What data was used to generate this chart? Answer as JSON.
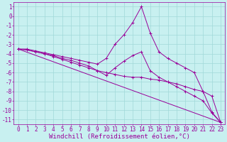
{
  "xlabel": "Windchill (Refroidissement éolien,°C)",
  "background_color": "#c8f0f0",
  "grid_color": "#a0d8d8",
  "line_color": "#990099",
  "xlim": [
    -0.5,
    23.5
  ],
  "ylim": [
    -11.5,
    1.5
  ],
  "xticks": [
    0,
    1,
    2,
    3,
    4,
    5,
    6,
    7,
    8,
    9,
    10,
    11,
    12,
    13,
    14,
    15,
    16,
    17,
    18,
    19,
    20,
    21,
    22,
    23
  ],
  "yticks": [
    1,
    0,
    -1,
    -2,
    -3,
    -4,
    -5,
    -6,
    -7,
    -8,
    -9,
    -10,
    -11
  ],
  "lines": [
    {
      "x": [
        0,
        1,
        2,
        3,
        4,
        5,
        6,
        7,
        8,
        9,
        10,
        11,
        12,
        13,
        14,
        15,
        16,
        17,
        18,
        19,
        20,
        21,
        22,
        23
      ],
      "y": [
        -3.5,
        -3.5,
        -3.7,
        -3.9,
        -4.1,
        -4.3,
        -4.5,
        -4.7,
        -4.9,
        -5.1,
        -4.5,
        -3.0,
        -2.0,
        -0.7,
        1.0,
        -1.8,
        -3.8,
        -4.5,
        -5.0,
        -5.5,
        -6.0,
        -8.0,
        -10.2,
        -11.3
      ]
    },
    {
      "x": [
        0,
        1,
        2,
        3,
        4,
        5,
        6,
        7,
        8,
        9,
        10,
        11,
        12,
        13,
        14,
        15,
        16,
        17,
        18,
        19,
        20,
        21,
        22,
        23
      ],
      "y": [
        -3.5,
        -3.6,
        -3.8,
        -4.0,
        -4.2,
        -4.5,
        -4.7,
        -5.0,
        -5.3,
        -5.8,
        -6.3,
        -5.5,
        -4.8,
        -4.2,
        -3.8,
        -5.8,
        -6.5,
        -7.0,
        -7.5,
        -8.0,
        -8.5,
        -9.0,
        -10.3,
        -11.3
      ]
    },
    {
      "x": [
        0,
        1,
        2,
        3,
        4,
        5,
        6,
        7,
        8,
        9,
        10,
        11,
        12,
        13,
        14,
        15,
        16,
        17,
        18,
        19,
        20,
        21,
        22,
        23
      ],
      "y": [
        -3.5,
        -3.6,
        -3.8,
        -4.0,
        -4.3,
        -4.6,
        -4.9,
        -5.2,
        -5.5,
        -5.8,
        -6.0,
        -6.2,
        -6.4,
        -6.5,
        -6.5,
        -6.7,
        -6.8,
        -7.0,
        -7.2,
        -7.5,
        -7.8,
        -8.0,
        -8.5,
        -11.3
      ]
    },
    {
      "x": [
        0,
        23
      ],
      "y": [
        -3.5,
        -11.3
      ]
    }
  ],
  "font_family": "monospace",
  "tick_fontsize": 5.5,
  "xlabel_fontsize": 6.5
}
